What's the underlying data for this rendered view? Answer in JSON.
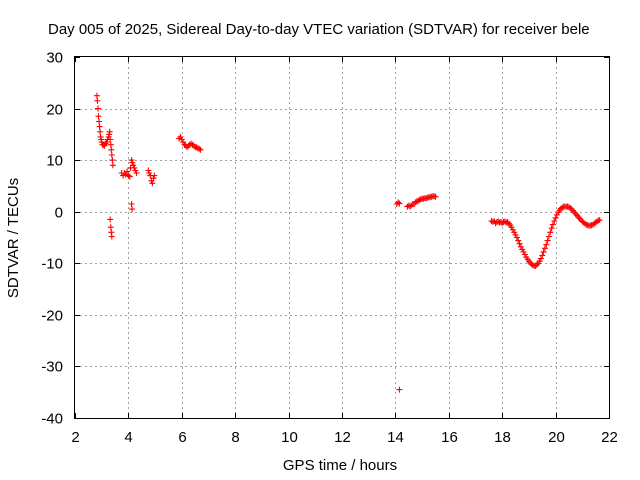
{
  "chart_data": {
    "type": "scatter",
    "title": "Day 005 of 2025, Sidereal Day-to-day VTEC variation (SDTVAR) for receiver bele",
    "xlabel": "GPS time / hours",
    "ylabel": "SDTVAR / TECUs",
    "xlim": [
      2,
      22
    ],
    "ylim": [
      -40,
      30
    ],
    "xticks": [
      "2",
      "4",
      "6",
      "8",
      "10",
      "12",
      "14",
      "16",
      "18",
      "20",
      "22"
    ],
    "yticks": [
      "30",
      "20",
      "10",
      "0",
      "-10",
      "-20",
      "-30",
      "-40"
    ],
    "grid": true,
    "marker": "+",
    "series": [
      {
        "name": "SDTVAR",
        "color": "#ff0000",
        "points": [
          [
            2.82,
            22.5
          ],
          [
            2.84,
            21.5
          ],
          [
            2.86,
            20.0
          ],
          [
            2.88,
            18.5
          ],
          [
            2.9,
            17.5
          ],
          [
            2.92,
            16.5
          ],
          [
            2.94,
            15.5
          ],
          [
            2.96,
            14.5
          ],
          [
            2.98,
            14.0
          ],
          [
            3.0,
            13.5
          ],
          [
            3.03,
            13.0
          ],
          [
            3.06,
            13.0
          ],
          [
            3.1,
            12.8
          ],
          [
            3.14,
            13.2
          ],
          [
            3.18,
            13.5
          ],
          [
            3.22,
            14.0
          ],
          [
            3.26,
            14.5
          ],
          [
            3.28,
            15.0
          ],
          [
            3.3,
            15.5
          ],
          [
            3.32,
            14.0
          ],
          [
            3.34,
            13.0
          ],
          [
            3.36,
            12.0
          ],
          [
            3.38,
            11.0
          ],
          [
            3.4,
            10.0
          ],
          [
            3.42,
            9.0
          ],
          [
            3.32,
            -1.5
          ],
          [
            3.34,
            -3.0
          ],
          [
            3.36,
            -4.0
          ],
          [
            3.38,
            -4.8
          ],
          [
            3.75,
            7.5
          ],
          [
            3.8,
            7.0
          ],
          [
            3.85,
            7.5
          ],
          [
            3.9,
            7.2
          ],
          [
            3.95,
            7.8
          ],
          [
            4.0,
            7.0
          ],
          [
            4.05,
            6.8
          ],
          [
            4.08,
            8.5
          ],
          [
            4.12,
            10.0
          ],
          [
            4.15,
            9.5
          ],
          [
            4.18,
            9.0
          ],
          [
            4.22,
            8.5
          ],
          [
            4.26,
            8.0
          ],
          [
            4.3,
            7.5
          ],
          [
            4.12,
            1.5
          ],
          [
            4.14,
            0.5
          ],
          [
            4.75,
            8.0
          ],
          [
            4.78,
            7.5
          ],
          [
            4.82,
            7.0
          ],
          [
            4.86,
            6.0
          ],
          [
            4.9,
            5.5
          ],
          [
            4.94,
            6.5
          ],
          [
            4.97,
            7.0
          ],
          [
            5.9,
            14.2
          ],
          [
            5.95,
            14.5
          ],
          [
            6.0,
            14.0
          ],
          [
            6.05,
            13.5
          ],
          [
            6.1,
            13.0
          ],
          [
            6.15,
            12.8
          ],
          [
            6.2,
            12.5
          ],
          [
            6.25,
            12.8
          ],
          [
            6.3,
            13.0
          ],
          [
            6.35,
            13.2
          ],
          [
            6.4,
            13.0
          ],
          [
            6.45,
            12.8
          ],
          [
            6.5,
            12.5
          ],
          [
            6.55,
            12.5
          ],
          [
            6.6,
            12.3
          ],
          [
            6.65,
            12.2
          ],
          [
            6.7,
            12.0
          ],
          [
            14.05,
            1.5
          ],
          [
            14.1,
            1.8
          ],
          [
            14.15,
            1.6
          ],
          [
            14.45,
            1.0
          ],
          [
            14.5,
            1.2
          ],
          [
            14.55,
            1.0
          ],
          [
            14.6,
            1.2
          ],
          [
            14.65,
            1.5
          ],
          [
            14.7,
            1.5
          ],
          [
            14.75,
            1.8
          ],
          [
            14.8,
            2.0
          ],
          [
            14.85,
            2.1
          ],
          [
            14.9,
            2.3
          ],
          [
            14.95,
            2.4
          ],
          [
            15.0,
            2.5
          ],
          [
            15.05,
            2.5
          ],
          [
            15.1,
            2.6
          ],
          [
            15.15,
            2.6
          ],
          [
            15.2,
            2.7
          ],
          [
            15.25,
            2.8
          ],
          [
            15.3,
            2.8
          ],
          [
            15.35,
            2.9
          ],
          [
            15.4,
            3.0
          ],
          [
            15.45,
            3.0
          ],
          [
            15.5,
            2.9
          ],
          [
            14.15,
            -34.5
          ],
          [
            17.6,
            -1.8
          ],
          [
            17.65,
            -2.0
          ],
          [
            17.7,
            -1.8
          ],
          [
            17.75,
            -2.2
          ],
          [
            17.8,
            -2.0
          ],
          [
            17.85,
            -1.9
          ],
          [
            17.9,
            -2.1
          ],
          [
            17.95,
            -2.0
          ],
          [
            18.0,
            -2.2
          ],
          [
            18.05,
            -2.0
          ],
          [
            18.1,
            -1.9
          ],
          [
            18.15,
            -2.1
          ],
          [
            18.2,
            -2.0
          ],
          [
            18.25,
            -2.3
          ],
          [
            18.3,
            -2.6
          ],
          [
            18.35,
            -3.0
          ],
          [
            18.4,
            -3.5
          ],
          [
            18.45,
            -4.0
          ],
          [
            18.5,
            -4.5
          ],
          [
            18.55,
            -5.0
          ],
          [
            18.6,
            -5.6
          ],
          [
            18.65,
            -6.2
          ],
          [
            18.7,
            -6.8
          ],
          [
            18.75,
            -7.3
          ],
          [
            18.8,
            -7.8
          ],
          [
            18.85,
            -8.3
          ],
          [
            18.9,
            -8.8
          ],
          [
            18.95,
            -9.2
          ],
          [
            19.0,
            -9.6
          ],
          [
            19.05,
            -9.9
          ],
          [
            19.1,
            -10.2
          ],
          [
            19.15,
            -10.4
          ],
          [
            19.2,
            -10.5
          ],
          [
            19.25,
            -10.5
          ],
          [
            19.3,
            -10.3
          ],
          [
            19.35,
            -10.0
          ],
          [
            19.4,
            -9.6
          ],
          [
            19.45,
            -9.1
          ],
          [
            19.5,
            -8.5
          ],
          [
            19.55,
            -7.8
          ],
          [
            19.6,
            -7.1
          ],
          [
            19.65,
            -6.4
          ],
          [
            19.7,
            -5.6
          ],
          [
            19.75,
            -4.8
          ],
          [
            19.8,
            -4.0
          ],
          [
            19.85,
            -3.2
          ],
          [
            19.9,
            -2.5
          ],
          [
            19.95,
            -1.8
          ],
          [
            20.0,
            -1.2
          ],
          [
            20.05,
            -0.6
          ],
          [
            20.1,
            -0.1
          ],
          [
            20.15,
            0.3
          ],
          [
            20.2,
            0.6
          ],
          [
            20.25,
            0.8
          ],
          [
            20.3,
            1.0
          ],
          [
            20.35,
            1.0
          ],
          [
            20.4,
            1.0
          ],
          [
            20.45,
            1.0
          ],
          [
            20.5,
            0.9
          ],
          [
            20.55,
            0.7
          ],
          [
            20.6,
            0.5
          ],
          [
            20.65,
            0.2
          ],
          [
            20.7,
            -0.1
          ],
          [
            20.75,
            -0.4
          ],
          [
            20.8,
            -0.7
          ],
          [
            20.85,
            -1.0
          ],
          [
            20.9,
            -1.3
          ],
          [
            20.95,
            -1.6
          ],
          [
            21.0,
            -1.9
          ],
          [
            21.05,
            -2.1
          ],
          [
            21.1,
            -2.3
          ],
          [
            21.15,
            -2.5
          ],
          [
            21.2,
            -2.6
          ],
          [
            21.25,
            -2.7
          ],
          [
            21.3,
            -2.7
          ],
          [
            21.35,
            -2.6
          ],
          [
            21.4,
            -2.5
          ],
          [
            21.45,
            -2.3
          ],
          [
            21.5,
            -2.1
          ],
          [
            21.55,
            -1.9
          ],
          [
            21.6,
            -1.7
          ],
          [
            21.65,
            -1.6
          ]
        ]
      }
    ]
  }
}
